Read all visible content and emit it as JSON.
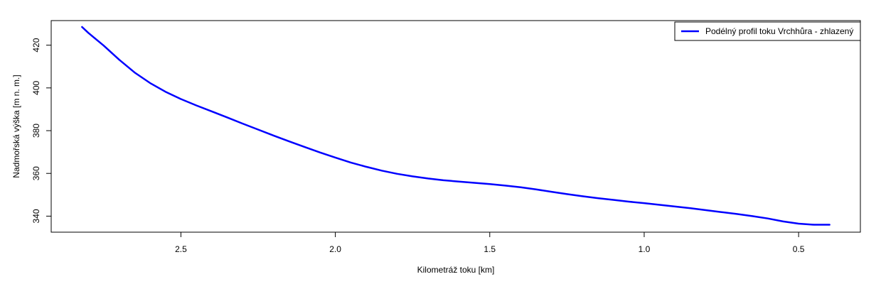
{
  "chart_data": {
    "type": "line",
    "title": "",
    "xlabel": "Kilometráž toku [km]",
    "ylabel": "Nadmořská výška [m n. m.]",
    "xlim": [
      2.92,
      0.3
    ],
    "ylim": [
      332.5,
      431.5
    ],
    "x_reversed": true,
    "grid": false,
    "legend_position": "top-right",
    "x_ticks": [
      2.5,
      2.0,
      1.5,
      1.0,
      0.5
    ],
    "x_tick_labels": [
      "2.5",
      "2.0",
      "1.5",
      "1.0",
      "0.5"
    ],
    "y_ticks": [
      340,
      360,
      380,
      400,
      420
    ],
    "y_tick_labels": [
      "340",
      "360",
      "380",
      "400",
      "420"
    ],
    "series": [
      {
        "name": "Podélný profil toku Vrchhůra - zhlazený",
        "color": "#0000ff",
        "x": [
          2.82,
          2.8,
          2.75,
          2.7,
          2.65,
          2.6,
          2.55,
          2.5,
          2.45,
          2.4,
          2.35,
          2.3,
          2.25,
          2.2,
          2.15,
          2.1,
          2.05,
          2.0,
          1.95,
          1.9,
          1.85,
          1.8,
          1.75,
          1.7,
          1.65,
          1.6,
          1.55,
          1.5,
          1.45,
          1.4,
          1.35,
          1.3,
          1.25,
          1.2,
          1.15,
          1.1,
          1.05,
          1.0,
          0.95,
          0.9,
          0.85,
          0.8,
          0.75,
          0.7,
          0.65,
          0.6,
          0.55,
          0.5,
          0.45,
          0.4
        ],
        "y": [
          428.5,
          425.8,
          419.8,
          413.2,
          407.2,
          402.3,
          398.2,
          394.8,
          391.8,
          389.0,
          386.2,
          383.3,
          380.5,
          377.7,
          375.0,
          372.4,
          369.8,
          367.4,
          365.1,
          363.1,
          361.3,
          359.8,
          358.6,
          357.6,
          356.8,
          356.2,
          355.6,
          355.0,
          354.3,
          353.5,
          352.5,
          351.4,
          350.3,
          349.3,
          348.4,
          347.6,
          346.8,
          346.1,
          345.3,
          344.5,
          343.7,
          342.8,
          341.9,
          341.0,
          340.0,
          338.9,
          337.5,
          336.5,
          336.0,
          336.0
        ]
      }
    ]
  }
}
